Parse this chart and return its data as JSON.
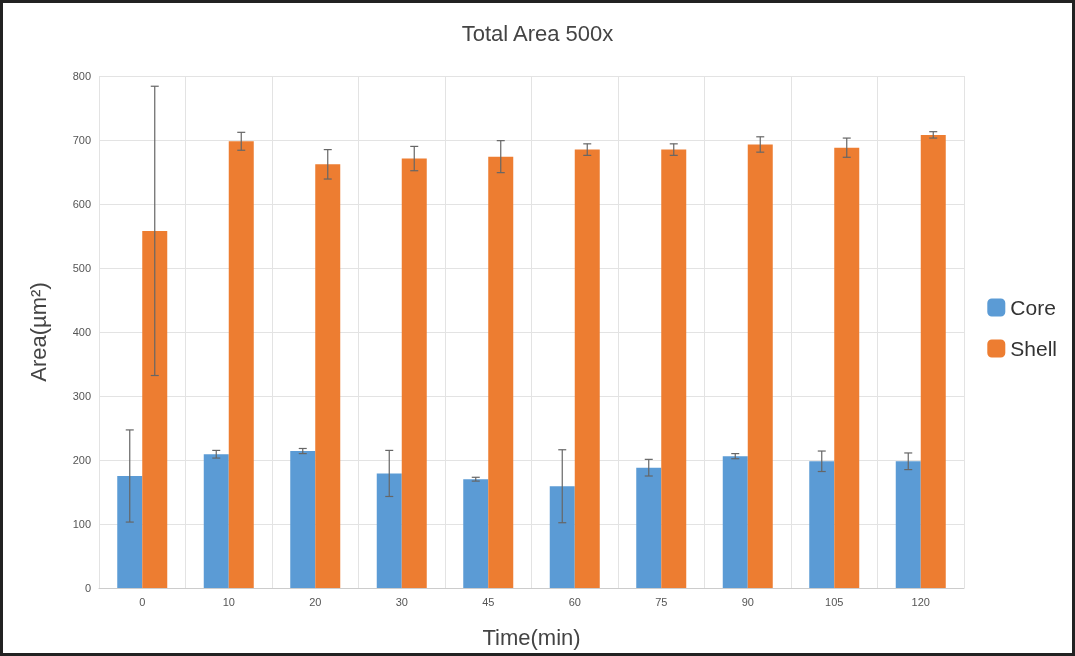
{
  "chart_data": {
    "type": "bar",
    "title": "Total Area 500x",
    "xlabel": "Time(min)",
    "ylabel": "Area(µm²)",
    "categories": [
      "0",
      "10",
      "20",
      "30",
      "45",
      "60",
      "75",
      "90",
      "105",
      "120"
    ],
    "series": [
      {
        "name": "Core",
        "color": "#5b9bd5",
        "values": [
          175,
          209,
          214,
          179,
          170,
          159,
          188,
          206,
          198,
          198
        ],
        "errors": [
          72,
          6,
          4,
          36,
          3,
          57,
          13,
          4,
          16,
          13
        ]
      },
      {
        "name": "Shell",
        "color": "#ed7d31",
        "values": [
          558,
          698,
          662,
          671,
          674,
          685,
          685,
          693,
          688,
          708
        ],
        "errors": [
          226,
          14,
          23,
          19,
          25,
          9,
          9,
          12,
          15,
          5
        ]
      }
    ],
    "ylim": [
      0,
      800
    ],
    "yticks": [
      0,
      100,
      200,
      300,
      400,
      500,
      600,
      700,
      800
    ],
    "grid": true,
    "legend": "right"
  }
}
